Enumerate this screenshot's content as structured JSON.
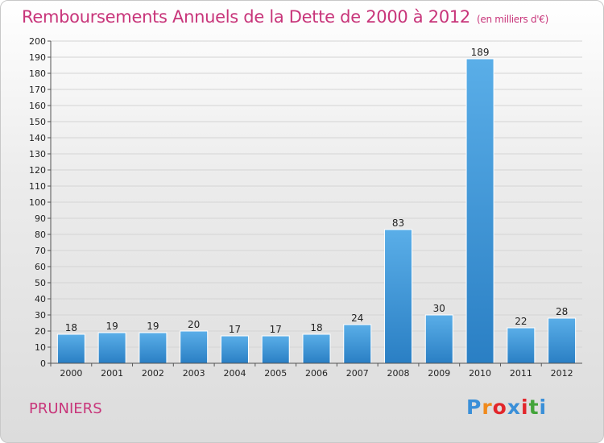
{
  "chart_data": {
    "type": "bar",
    "title": "Remboursements Annuels de la Dette de 2000 à 2012",
    "unit_label": "(en milliers d'€)",
    "categories": [
      "2000",
      "2001",
      "2002",
      "2003",
      "2004",
      "2005",
      "2006",
      "2007",
      "2008",
      "2009",
      "2010",
      "2011",
      "2012"
    ],
    "values": [
      18,
      19,
      19,
      20,
      17,
      17,
      18,
      24,
      83,
      30,
      189,
      22,
      28
    ],
    "ylim": [
      0,
      200
    ],
    "yticks": [
      0,
      10,
      20,
      30,
      40,
      50,
      60,
      70,
      80,
      90,
      100,
      110,
      120,
      130,
      140,
      150,
      160,
      170,
      180,
      190,
      200
    ],
    "grid": true,
    "bar_color": "#3a93dc",
    "title_color": "#c8357a"
  },
  "commune": "PRUNIERS",
  "logo": {
    "letters": [
      "P",
      "r",
      "o",
      "x",
      "i",
      "t",
      "i"
    ],
    "colors": [
      "#3a8fd8",
      "#f08a1c",
      "#e2262b",
      "#3a8fd8",
      "#e2262b",
      "#43a43a",
      "#3a8fd8"
    ]
  }
}
